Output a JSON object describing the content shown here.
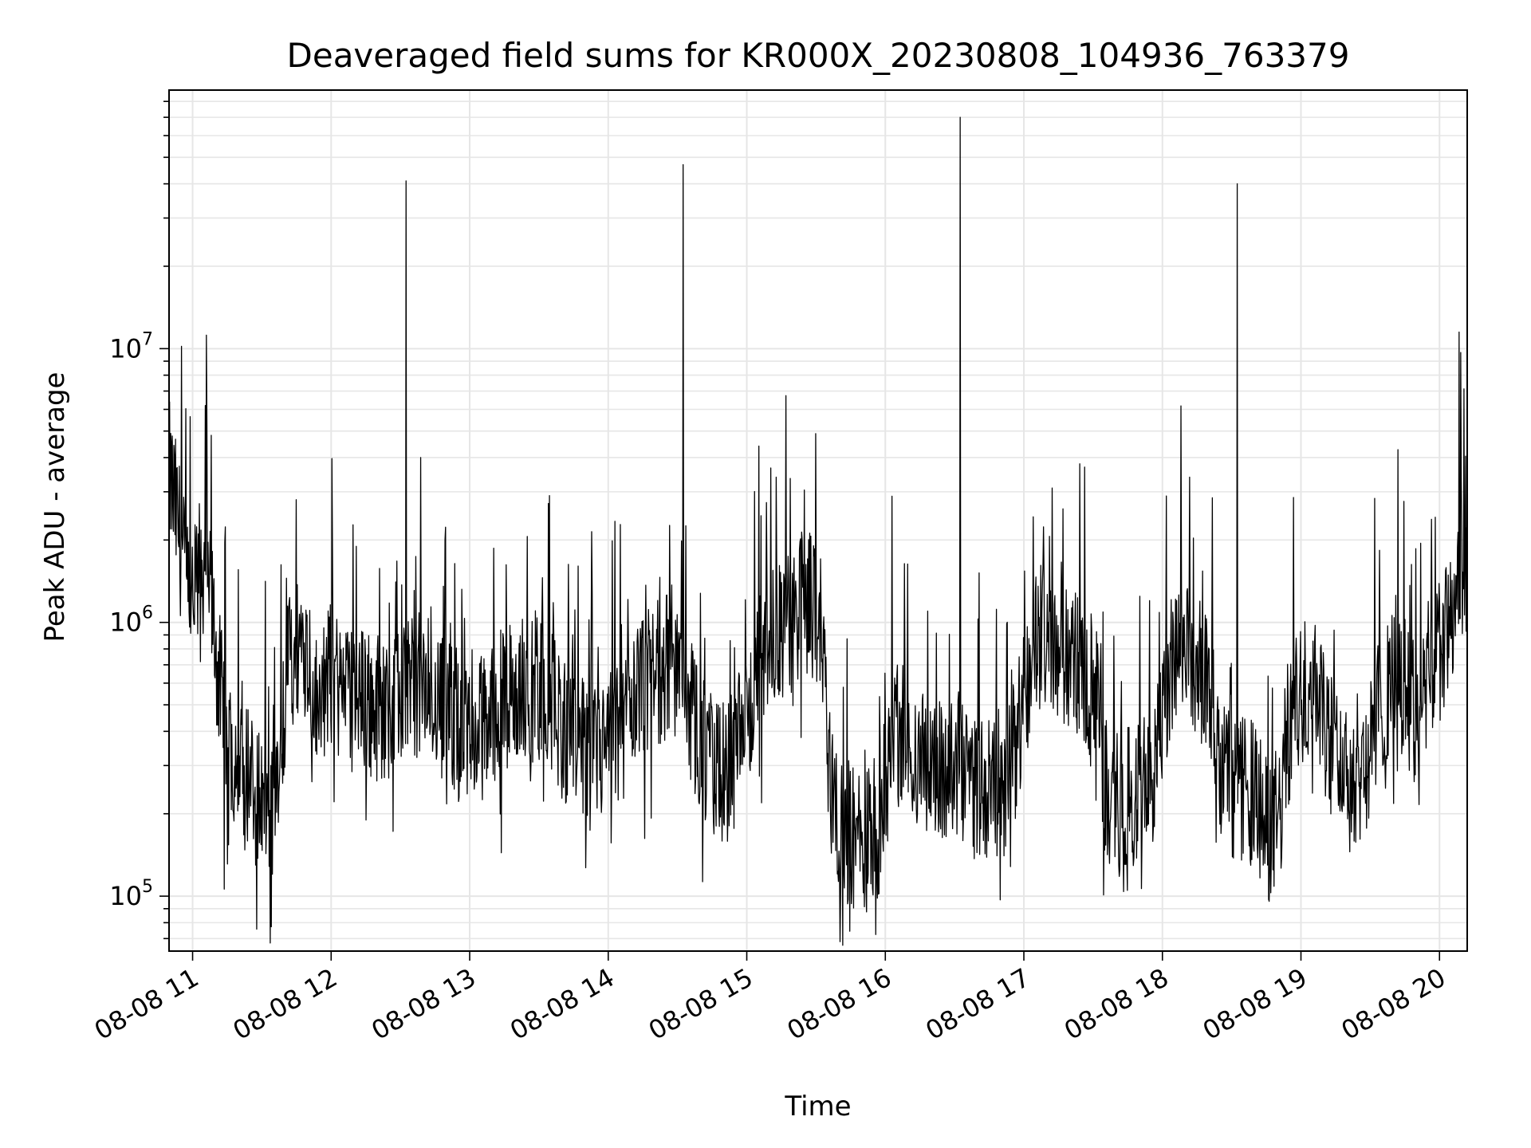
{
  "chart_data": {
    "type": "line",
    "title": "Deaveraged field sums for KR000X_20230808_104936_763379",
    "xlabel": "Time",
    "ylabel": "Peak ADU - average",
    "y_scale": "log",
    "x_range_hours": [
      10.83,
      20.2
    ],
    "ylim": [
      63000,
      88000000
    ],
    "grid": true,
    "legend": "none",
    "line_color": "#000000",
    "x_ticks": [
      {
        "hour": 11,
        "label": "08-08 11"
      },
      {
        "hour": 12,
        "label": "08-08 12"
      },
      {
        "hour": 13,
        "label": "08-08 13"
      },
      {
        "hour": 14,
        "label": "08-08 14"
      },
      {
        "hour": 15,
        "label": "08-08 15"
      },
      {
        "hour": 16,
        "label": "08-08 16"
      },
      {
        "hour": 17,
        "label": "08-08 17"
      },
      {
        "hour": 18,
        "label": "08-08 18"
      },
      {
        "hour": 19,
        "label": "08-08 19"
      },
      {
        "hour": 20,
        "label": "08-08 20"
      }
    ],
    "y_ticks": [
      {
        "value": 100000,
        "base": "10",
        "exp": "5"
      },
      {
        "value": 1000000,
        "base": "10",
        "exp": "6"
      },
      {
        "value": 10000000,
        "base": "10",
        "exp": "7"
      }
    ],
    "series": [
      {
        "values": [
          [
            10.83,
            3500000
          ],
          [
            10.9,
            2200000
          ],
          [
            10.96,
            1300000
          ],
          [
            11.0,
            1100000
          ],
          [
            11.05,
            1600000
          ],
          [
            11.1,
            1700000
          ],
          [
            11.15,
            1000000
          ],
          [
            11.2,
            550000
          ],
          [
            11.25,
            380000
          ],
          [
            11.3,
            330000
          ],
          [
            11.35,
            400000
          ],
          [
            11.4,
            290000
          ],
          [
            11.45,
            240000
          ],
          [
            11.5,
            230000
          ],
          [
            11.55,
            210000
          ],
          [
            11.6,
            180000
          ],
          [
            11.65,
            420000
          ],
          [
            11.7,
            750000
          ],
          [
            11.75,
            800000
          ],
          [
            11.8,
            900000
          ],
          [
            11.85,
            700000
          ],
          [
            11.9,
            450000
          ],
          [
            11.95,
            600000
          ],
          [
            12.0,
            650000
          ],
          [
            12.1,
            550000
          ],
          [
            12.2,
            520000
          ],
          [
            12.3,
            500000
          ],
          [
            12.4,
            480000
          ],
          [
            12.5,
            520000
          ],
          [
            12.55,
            650000
          ],
          [
            12.6,
            600000
          ],
          [
            12.7,
            560000
          ],
          [
            12.8,
            500000
          ],
          [
            12.9,
            430000
          ],
          [
            13.0,
            360000
          ],
          [
            13.1,
            420000
          ],
          [
            13.2,
            500000
          ],
          [
            13.3,
            550000
          ],
          [
            13.4,
            560000
          ],
          [
            13.5,
            600000
          ],
          [
            13.6,
            520000
          ],
          [
            13.7,
            380000
          ],
          [
            13.8,
            320000
          ],
          [
            13.9,
            330000
          ],
          [
            14.0,
            350000
          ],
          [
            14.1,
            400000
          ],
          [
            14.2,
            520000
          ],
          [
            14.3,
            600000
          ],
          [
            14.4,
            700000
          ],
          [
            14.5,
            650000
          ],
          [
            14.6,
            480000
          ],
          [
            14.7,
            320000
          ],
          [
            14.8,
            280000
          ],
          [
            14.9,
            290000
          ],
          [
            15.0,
            450000
          ],
          [
            15.1,
            700000
          ],
          [
            15.2,
            850000
          ],
          [
            15.3,
            1000000
          ],
          [
            15.4,
            1200000
          ],
          [
            15.5,
            1100000
          ],
          [
            15.55,
            900000
          ],
          [
            15.6,
            260000
          ],
          [
            15.65,
            200000
          ],
          [
            15.7,
            180000
          ],
          [
            15.75,
            170000
          ],
          [
            15.8,
            160000
          ],
          [
            15.85,
            155000
          ],
          [
            15.9,
            165000
          ],
          [
            15.95,
            180000
          ],
          [
            16.0,
            260000
          ],
          [
            16.05,
            380000
          ],
          [
            16.1,
            400000
          ],
          [
            16.2,
            330000
          ],
          [
            16.3,
            300000
          ],
          [
            16.4,
            280000
          ],
          [
            16.5,
            280000
          ],
          [
            16.6,
            260000
          ],
          [
            16.7,
            250000
          ],
          [
            16.8,
            260000
          ],
          [
            16.9,
            290000
          ],
          [
            17.0,
            500000
          ],
          [
            17.05,
            800000
          ],
          [
            17.1,
            850000
          ],
          [
            17.2,
            900000
          ],
          [
            17.3,
            750000
          ],
          [
            17.4,
            700000
          ],
          [
            17.5,
            600000
          ],
          [
            17.55,
            400000
          ],
          [
            17.6,
            230000
          ],
          [
            17.7,
            220000
          ],
          [
            17.8,
            240000
          ],
          [
            17.9,
            260000
          ],
          [
            18.0,
            400000
          ],
          [
            18.05,
            650000
          ],
          [
            18.1,
            700000
          ],
          [
            18.2,
            800000
          ],
          [
            18.3,
            650000
          ],
          [
            18.4,
            350000
          ],
          [
            18.5,
            220000
          ],
          [
            18.6,
            250000
          ],
          [
            18.7,
            220000
          ],
          [
            18.75,
            170000
          ],
          [
            18.8,
            180000
          ],
          [
            18.85,
            200000
          ],
          [
            18.9,
            380000
          ],
          [
            19.0,
            550000
          ],
          [
            19.1,
            650000
          ],
          [
            19.15,
            500000
          ],
          [
            19.2,
            360000
          ],
          [
            19.3,
            300000
          ],
          [
            19.4,
            290000
          ],
          [
            19.5,
            330000
          ],
          [
            19.6,
            550000
          ],
          [
            19.7,
            700000
          ],
          [
            19.8,
            500000
          ],
          [
            19.85,
            360000
          ],
          [
            19.9,
            600000
          ],
          [
            20.0,
            800000
          ],
          [
            20.1,
            1000000
          ],
          [
            20.2,
            1200000
          ]
        ],
        "spikes": [
          [
            10.92,
            10200000
          ],
          [
            11.1,
            11200000
          ],
          [
            12.54,
            41000000
          ],
          [
            14.54,
            47000000
          ],
          [
            16.54,
            70000000
          ],
          [
            18.54,
            40000000
          ],
          [
            20.14,
            11500000
          ]
        ]
      }
    ]
  }
}
